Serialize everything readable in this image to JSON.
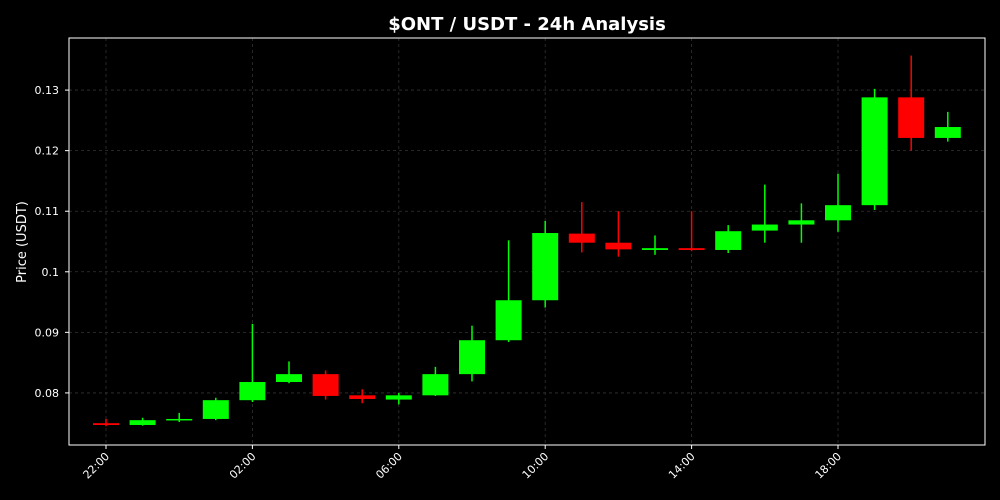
{
  "chart_data": {
    "type": "candlestick",
    "title": "$ONT / USDT - 24h Analysis",
    "y_label": "Price (USDT)",
    "categories": [
      "22:00",
      null,
      null,
      null,
      "02:00",
      null,
      null,
      null,
      "06:00",
      null,
      null,
      null,
      "10:00",
      null,
      null,
      null,
      "14:00",
      null,
      null,
      null,
      "18:00",
      null,
      null,
      null
    ],
    "open": [
      0.075,
      0.0747,
      0.0755,
      0.0757,
      0.0788,
      0.0818,
      0.0831,
      0.0796,
      0.0789,
      0.0796,
      0.0831,
      0.0887,
      0.0953,
      0.1063,
      0.1048,
      0.1036,
      0.1039,
      0.1036,
      0.1068,
      0.1078,
      0.1085,
      0.111,
      0.1288,
      0.1221
    ],
    "high": [
      0.0757,
      0.0759,
      0.0767,
      0.0792,
      0.0914,
      0.0852,
      0.0837,
      0.0806,
      0.08,
      0.0843,
      0.0911,
      0.1052,
      0.1084,
      0.1115,
      0.11,
      0.106,
      0.11,
      0.1077,
      0.1144,
      0.1113,
      0.1162,
      0.1302,
      0.1357,
      0.1264
    ],
    "low": [
      0.0745,
      0.0746,
      0.0752,
      0.0755,
      0.0785,
      0.0816,
      0.0789,
      0.0783,
      0.0781,
      0.0795,
      0.0819,
      0.0884,
      0.0941,
      0.1032,
      0.1025,
      0.1028,
      0.1034,
      0.1031,
      0.1048,
      0.1048,
      0.1066,
      0.1102,
      0.12,
      0.1215
    ],
    "close": [
      0.0747,
      0.0755,
      0.0757,
      0.0788,
      0.0818,
      0.0831,
      0.0795,
      0.079,
      0.0796,
      0.0831,
      0.0887,
      0.0953,
      0.1064,
      0.1048,
      0.1037,
      0.1039,
      0.1036,
      0.1067,
      0.1078,
      0.1085,
      0.111,
      0.1288,
      0.1221,
      0.1239
    ],
    "up_color": "#00ff00",
    "down_color": "#ff0000",
    "ylim": [
      0.0714,
      0.1386
    ],
    "yticks": [
      0.08,
      0.09,
      0.1,
      0.11,
      0.12,
      0.13
    ],
    "grid": true
  }
}
